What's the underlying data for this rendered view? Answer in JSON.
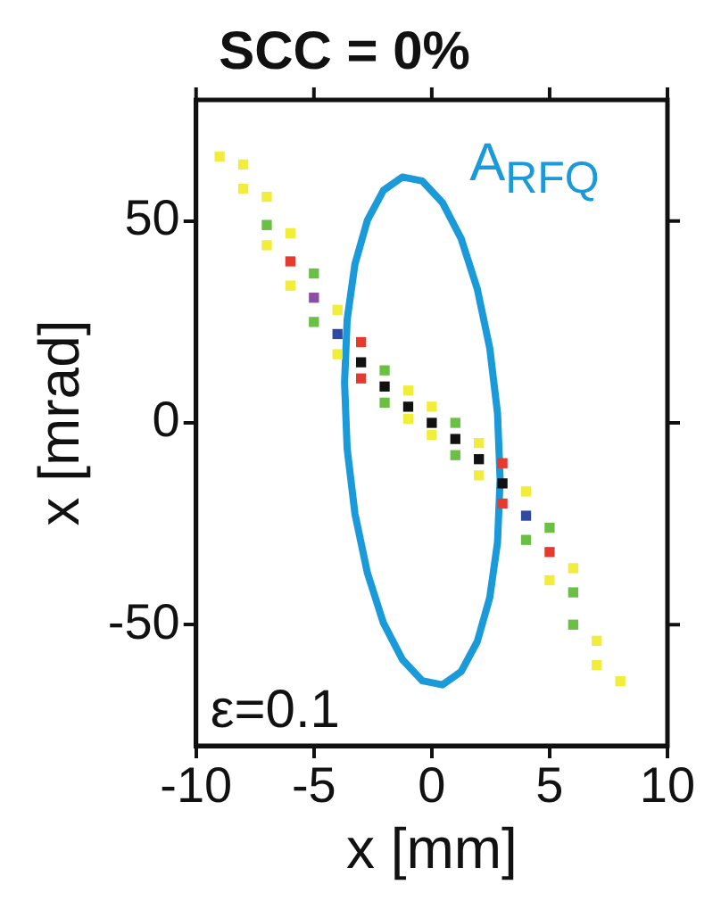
{
  "chart_data": {
    "type": "line",
    "title": "SCC = 0%",
    "xlabel": "x [mm]",
    "ylabel": "x [mrad]",
    "xlim": [
      -10,
      10
    ],
    "xticks": [
      -10,
      -5,
      0,
      5,
      10
    ],
    "ylim": [
      -80,
      80
    ],
    "yticks": [
      -50,
      0,
      50
    ],
    "grid": false,
    "legend": "top right",
    "annotations": [
      "ε=0.1"
    ],
    "series": [
      {
        "type": "scatter",
        "marker": "square",
        "x": [
          -9,
          -8,
          -7,
          -6,
          -5,
          -4,
          -3,
          -2,
          -1,
          0,
          1,
          2,
          3,
          4,
          5,
          6,
          7,
          8,
          -8,
          -7,
          -6,
          -5,
          -4,
          -3,
          -2,
          -1,
          0,
          1,
          2,
          3,
          4,
          5,
          6,
          -7,
          -6,
          -5,
          -4,
          -3,
          -2,
          -1,
          0,
          1,
          2,
          3,
          4,
          5,
          6,
          7
        ],
        "values": [
          66,
          58,
          49,
          40,
          31,
          22,
          15,
          9,
          4,
          0,
          -4,
          -9,
          -15,
          -23,
          -32,
          -42,
          -54,
          -64,
          64,
          56,
          47,
          37,
          28,
          20,
          13,
          8,
          4,
          0,
          -5,
          -10,
          -17,
          -26,
          -36,
          44,
          34,
          25,
          17,
          11,
          5,
          1,
          -3,
          -8,
          -13,
          -20,
          -29,
          -39,
          -50,
          -60
        ],
        "colors": [
          "#f2ec3a",
          "#f2ec3a",
          "#6abf45",
          "#e63a2e",
          "#8a4fa0",
          "#2f4aa0",
          "#111111",
          "#111111",
          "#111111",
          "#111111",
          "#111111",
          "#111111",
          "#111111",
          "#2f4aa0",
          "#e63a2e",
          "#6abf45",
          "#f2ec3a",
          "#f2ec3a",
          "#f2ec3a",
          "#f2ec3a",
          "#f2ec3a",
          "#6abf45",
          "#f2ec3a",
          "#e63a2e",
          "#6abf45",
          "#f2ec3a",
          "#f2ec3a",
          "#6abf45",
          "#f2ec3a",
          "#e63a2e",
          "#f2ec3a",
          "#6abf45",
          "#f2ec3a",
          "#f2ec3a",
          "#f2ec3a",
          "#6abf45",
          "#f2ec3a",
          "#e63a2e",
          "#6abf45",
          "#f2ec3a",
          "#f2ec3a",
          "#6abf45",
          "#f2ec3a",
          "#e63a2e",
          "#6abf45",
          "#f2ec3a",
          "#6abf45",
          "#f2ec3a"
        ]
      },
      {
        "name": "A$_{RFQ}$",
        "color": "#1a9ad9",
        "marker": "none",
        "line_style": "solid",
        "x": [
          -3.7,
          -3.59,
          -3.26,
          -2.73,
          -2.05,
          -1.25,
          -0.4,
          0.45,
          1.25,
          1.93,
          2.46,
          2.79,
          2.9,
          null,
          -3.7,
          -3.59,
          -3.26,
          -2.73,
          -2.05,
          -1.25,
          -0.4,
          0.45,
          1.25,
          1.93,
          2.46,
          2.79,
          2.9
        ],
        "values": [
          10,
          25.6,
          39.3,
          50.2,
          57.6,
          60.9,
          59.9,
          54.6,
          45.6,
          33.2,
          18.5,
          2.4,
          -14,
          null,
          10,
          -6.4,
          -22.5,
          -37.2,
          -49.6,
          -58.6,
          -63.9,
          -64.9,
          -61.6,
          -54.2,
          -43.3,
          -29.6,
          -14
        ]
      }
    ]
  }
}
